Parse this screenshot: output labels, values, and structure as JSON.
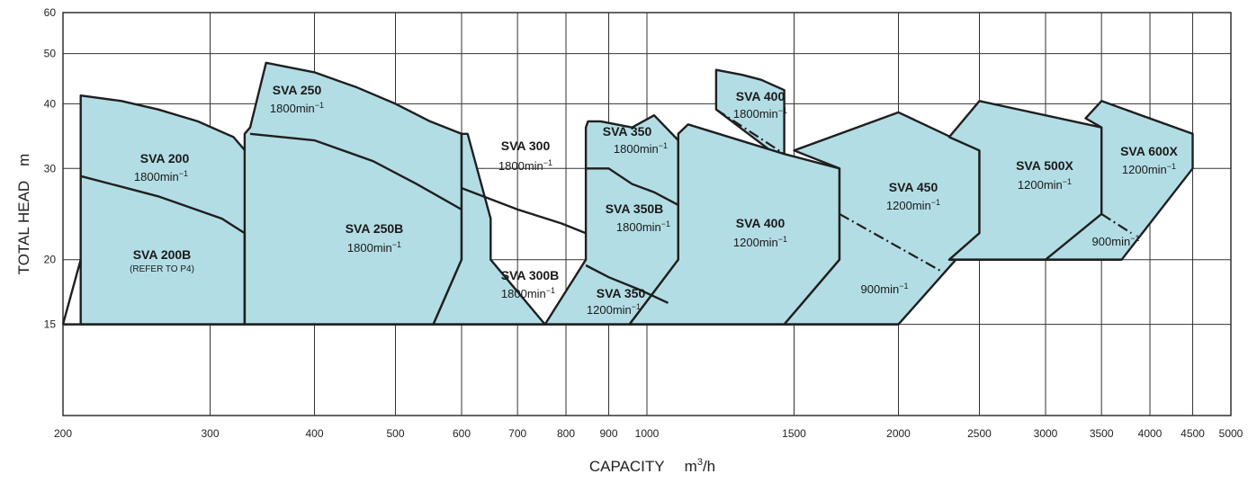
{
  "chart_data": {
    "type": "area",
    "title": "",
    "xlabel": "CAPACITY",
    "xunit": "m3/h",
    "ylabel": "TOTAL HEAD",
    "yunit": "m",
    "x_scale": "log",
    "y_scale": "log",
    "xlim": [
      200,
      5000
    ],
    "ylim": [
      10,
      60
    ],
    "grid": true,
    "x_ticks": [
      200,
      300,
      400,
      500,
      600,
      700,
      800,
      900,
      1000,
      1500,
      2000,
      2500,
      3000,
      3500,
      4000,
      4500,
      5000
    ],
    "y_ticks": [
      15,
      20,
      30,
      40,
      50,
      60
    ],
    "series": [
      {
        "name": "SVA 200",
        "speed": "1800min-1",
        "note": "",
        "boundary": [
          [
            210,
            15
          ],
          [
            210,
            41.5
          ],
          [
            235,
            40.5
          ],
          [
            260,
            39
          ],
          [
            290,
            37
          ],
          [
            320,
            34.5
          ],
          [
            333,
            32
          ],
          [
            333,
            20
          ],
          [
            330,
            15
          ]
        ]
      },
      {
        "name": "SVA 250",
        "speed": "1800min-1",
        "note": "",
        "boundary": [
          [
            330,
            15
          ],
          [
            330,
            35
          ],
          [
            335,
            36
          ],
          [
            350,
            48
          ],
          [
            400,
            46
          ],
          [
            450,
            43
          ],
          [
            500,
            40
          ],
          [
            550,
            37
          ],
          [
            600,
            35
          ],
          [
            600,
            20
          ],
          [
            555,
            15
          ]
        ]
      },
      {
        "name": "SVA 300",
        "speed": "1800min-1",
        "note": "",
        "boundary": [
          [
            555,
            15
          ],
          [
            600,
            20
          ],
          [
            600,
            35
          ],
          [
            610,
            35
          ],
          [
            650,
            24
          ],
          [
            650,
            20
          ],
          [
            755,
            15
          ]
        ]
      },
      {
        "name": "SVA 350",
        "speed": "1800min-1",
        "note": "",
        "boundary": [
          [
            755,
            15
          ],
          [
            845,
            20
          ],
          [
            845,
            36
          ],
          [
            850,
            37
          ],
          [
            880,
            37
          ],
          [
            960,
            36
          ],
          [
            1020,
            38
          ],
          [
            1090,
            34
          ],
          [
            1090,
            20
          ],
          [
            953,
            15
          ]
        ]
      },
      {
        "name": "SVA 400",
        "speed": "1800min-1",
        "note": "",
        "boundary": [
          [
            1210,
            39
          ],
          [
            1210,
            46.5
          ],
          [
            1300,
            45.5
          ],
          [
            1370,
            44.5
          ],
          [
            1460,
            42.5
          ],
          [
            1460,
            31
          ]
        ]
      },
      {
        "name": "SVA 400",
        "speed": "1200min-1",
        "note": "",
        "boundary": [
          [
            953,
            15
          ],
          [
            1090,
            20
          ],
          [
            1090,
            35
          ],
          [
            1120,
            36.5
          ],
          [
            1460,
            32
          ],
          [
            1700,
            30
          ],
          [
            1700,
            20
          ],
          [
            1460,
            15
          ]
        ]
      },
      {
        "name": "SVA 450",
        "speed": "1200min-1",
        "note": "",
        "boundary": [
          [
            1460,
            15
          ],
          [
            1700,
            20
          ],
          [
            1700,
            30
          ],
          [
            1500,
            32.5
          ],
          [
            2000,
            38.5
          ],
          [
            2500,
            32.5
          ],
          [
            2500,
            22.5
          ],
          [
            2000,
            15
          ]
        ]
      },
      {
        "name": "SVA 500X",
        "speed": "1200min-1",
        "note": "",
        "boundary": [
          [
            2300,
            20
          ],
          [
            2500,
            22.5
          ],
          [
            2500,
            32.5
          ],
          [
            2300,
            34.5
          ],
          [
            2500,
            40.5
          ],
          [
            3500,
            36
          ],
          [
            3500,
            20
          ]
        ]
      },
      {
        "name": "SVA 600X",
        "speed": "1200min-1",
        "note": "",
        "boundary": [
          [
            3000,
            20
          ],
          [
            3500,
            24.5
          ],
          [
            3500,
            36
          ],
          [
            3350,
            37.5
          ],
          [
            3500,
            40.5
          ],
          [
            4500,
            35
          ],
          [
            4500,
            30
          ],
          [
            3700,
            20
          ]
        ]
      }
    ],
    "subdivisions": [
      {
        "name": "SVA 200B",
        "note": "(REFER TO P4)"
      },
      {
        "name": "SVA 250B",
        "speed": "1800min-1"
      },
      {
        "name": "SVA 300B",
        "speed": "1800min-1"
      },
      {
        "name": "SVA 350B",
        "speed": "1800min-1"
      },
      {
        "name": "SVA 350",
        "speed": "1200min-1"
      },
      {
        "name": "",
        "speed": "900min-1"
      },
      {
        "name": "",
        "speed": "900min-1"
      }
    ]
  },
  "labels": {
    "sva200": "SVA 200",
    "sva200_speed": "1800min",
    "sva200b": "SVA 200B",
    "sva200b_note": "(REFER TO P4)",
    "sva250": "SVA 250",
    "sva250_speed": "1800min",
    "sva250b": "SVA 250B",
    "sva250b_speed": "1800min",
    "sva300": "SVA 300",
    "sva300_speed": "1800min",
    "sva300b": "SVA 300B",
    "sva300b_speed": "1800min",
    "sva350": "SVA 350",
    "sva350_speed": "1800min",
    "sva350b": "SVA 350B",
    "sva350b_speed": "1800min",
    "sva350_low": "SVA 350",
    "sva350_low_speed": "1200min",
    "sva400_top": "SVA 400",
    "sva400_top_speed": "1800min",
    "sva400": "SVA 400",
    "sva400_speed": "1200min",
    "sva450": "SVA 450",
    "sva450_speed": "1200min",
    "sva450_low_speed": "900min",
    "sva500x": "SVA 500X",
    "sva500x_speed": "1200min",
    "sva600x": "SVA 600X",
    "sva600x_speed": "1200min",
    "sva600x_low_speed": "900min",
    "speed_exp": "−1"
  },
  "axis": {
    "x_title": "CAPACITY",
    "x_unit": "m",
    "x_unit_sup": "3",
    "x_unit_tail": "/h",
    "y_title": "TOTAL HEAD",
    "y_unit": "m"
  }
}
